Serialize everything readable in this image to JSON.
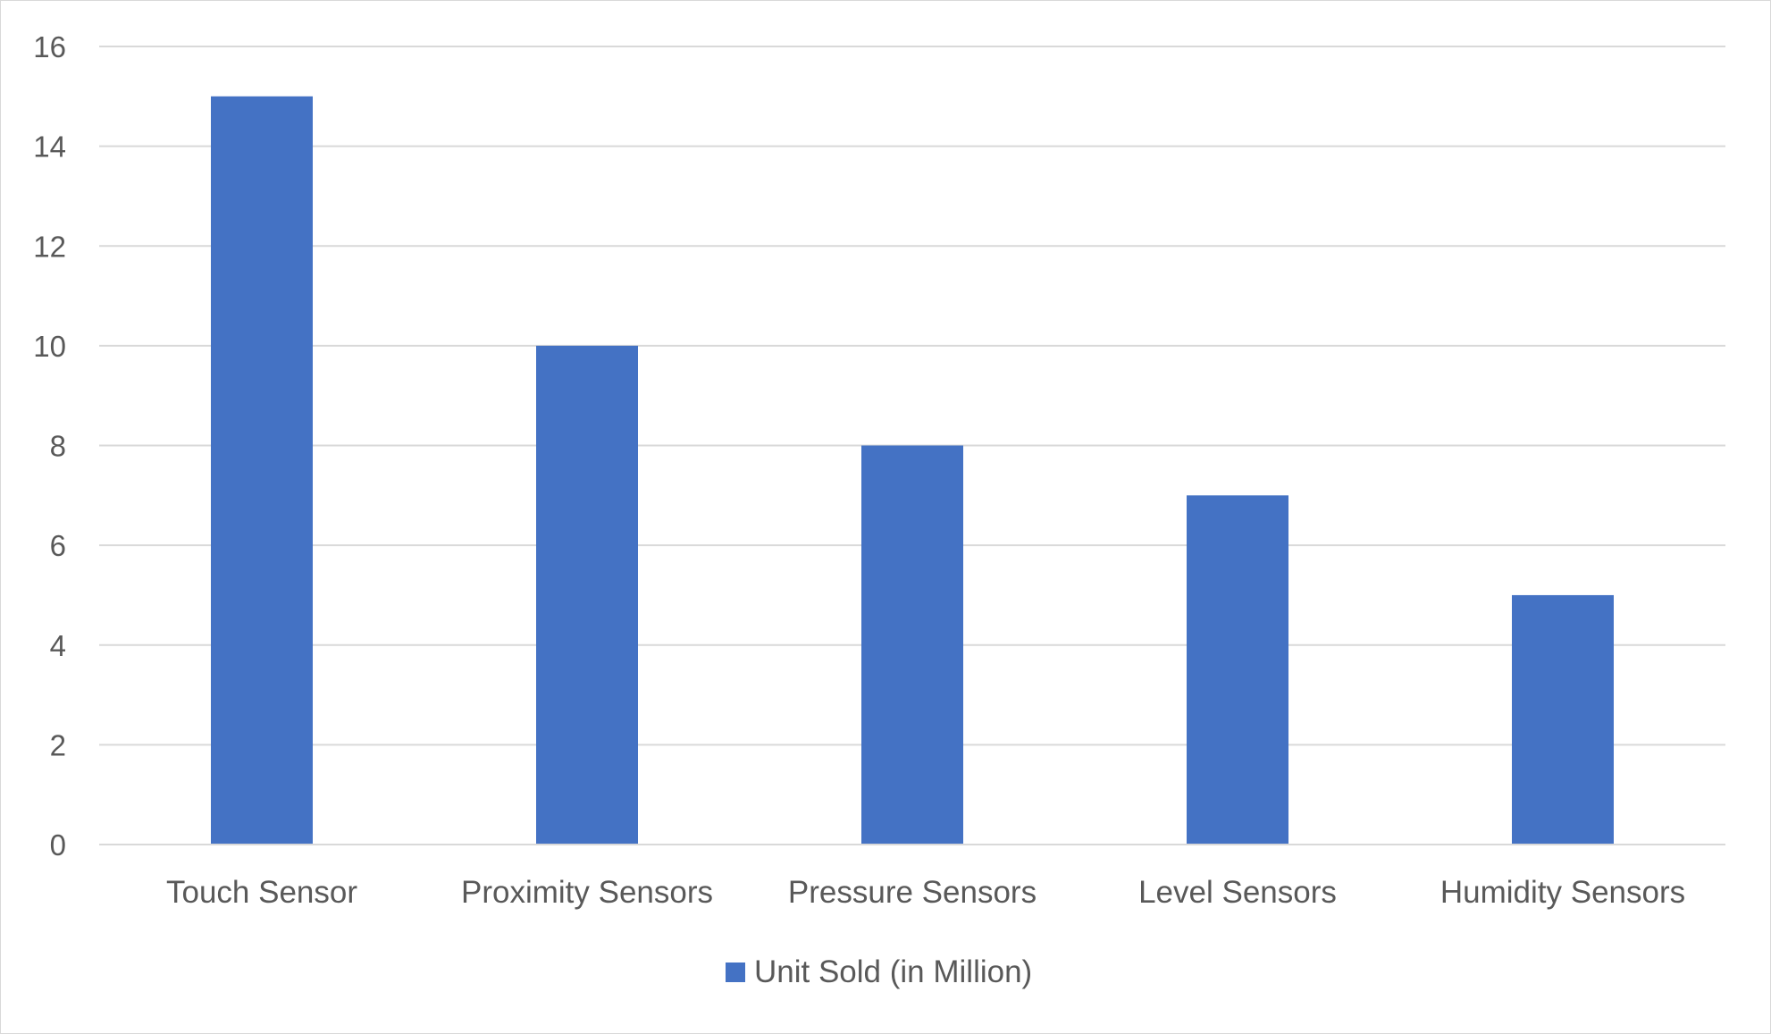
{
  "chart_data": {
    "type": "bar",
    "title": "",
    "xlabel": "",
    "ylabel": "",
    "categories": [
      "Touch Sensor",
      "Proximity Sensors",
      "Pressure Sensors",
      "Level Sensors",
      "Humidity Sensors"
    ],
    "series": [
      {
        "name": "Unit Sold (in Million)",
        "values": [
          15,
          10,
          8,
          7,
          5
        ],
        "color": "#4472c4"
      }
    ],
    "ylim": [
      0,
      16
    ],
    "yticks": [
      "0",
      "2",
      "4",
      "6",
      "8",
      "10",
      "12",
      "14",
      "16"
    ],
    "grid": true,
    "legend_position": "bottom",
    "colors": {
      "bar": "#4472c4",
      "grid": "#d9d9d9",
      "text": "#595959"
    }
  }
}
